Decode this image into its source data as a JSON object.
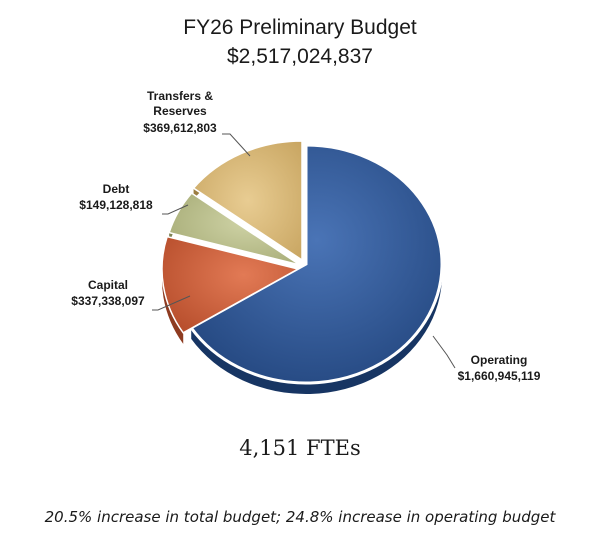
{
  "chart_data": {
    "type": "pie",
    "title": "FY26 Preliminary Budget",
    "subtitle": "$2,517,024,837",
    "slices": [
      {
        "label": "Operating",
        "value_text": "$1,660,945,119",
        "value": 1660945119,
        "color": "#2f5694"
      },
      {
        "label": "Capital",
        "value_text": "$337,338,097",
        "value": 337338097,
        "color": "#d2643f"
      },
      {
        "label": "Debt",
        "value_text": "$149,128,818",
        "value": 149128818,
        "color": "#bcc18e"
      },
      {
        "label": "Transfers & Reserves",
        "label_lines": [
          "Transfers &",
          "Reserves"
        ],
        "value_text": "$369,612,803",
        "value": 369612803,
        "color": "#d9b877"
      }
    ]
  },
  "ftes": "4,151 FTEs",
  "footnote": "20.5% increase in total budget; 24.8% increase in operating budget"
}
